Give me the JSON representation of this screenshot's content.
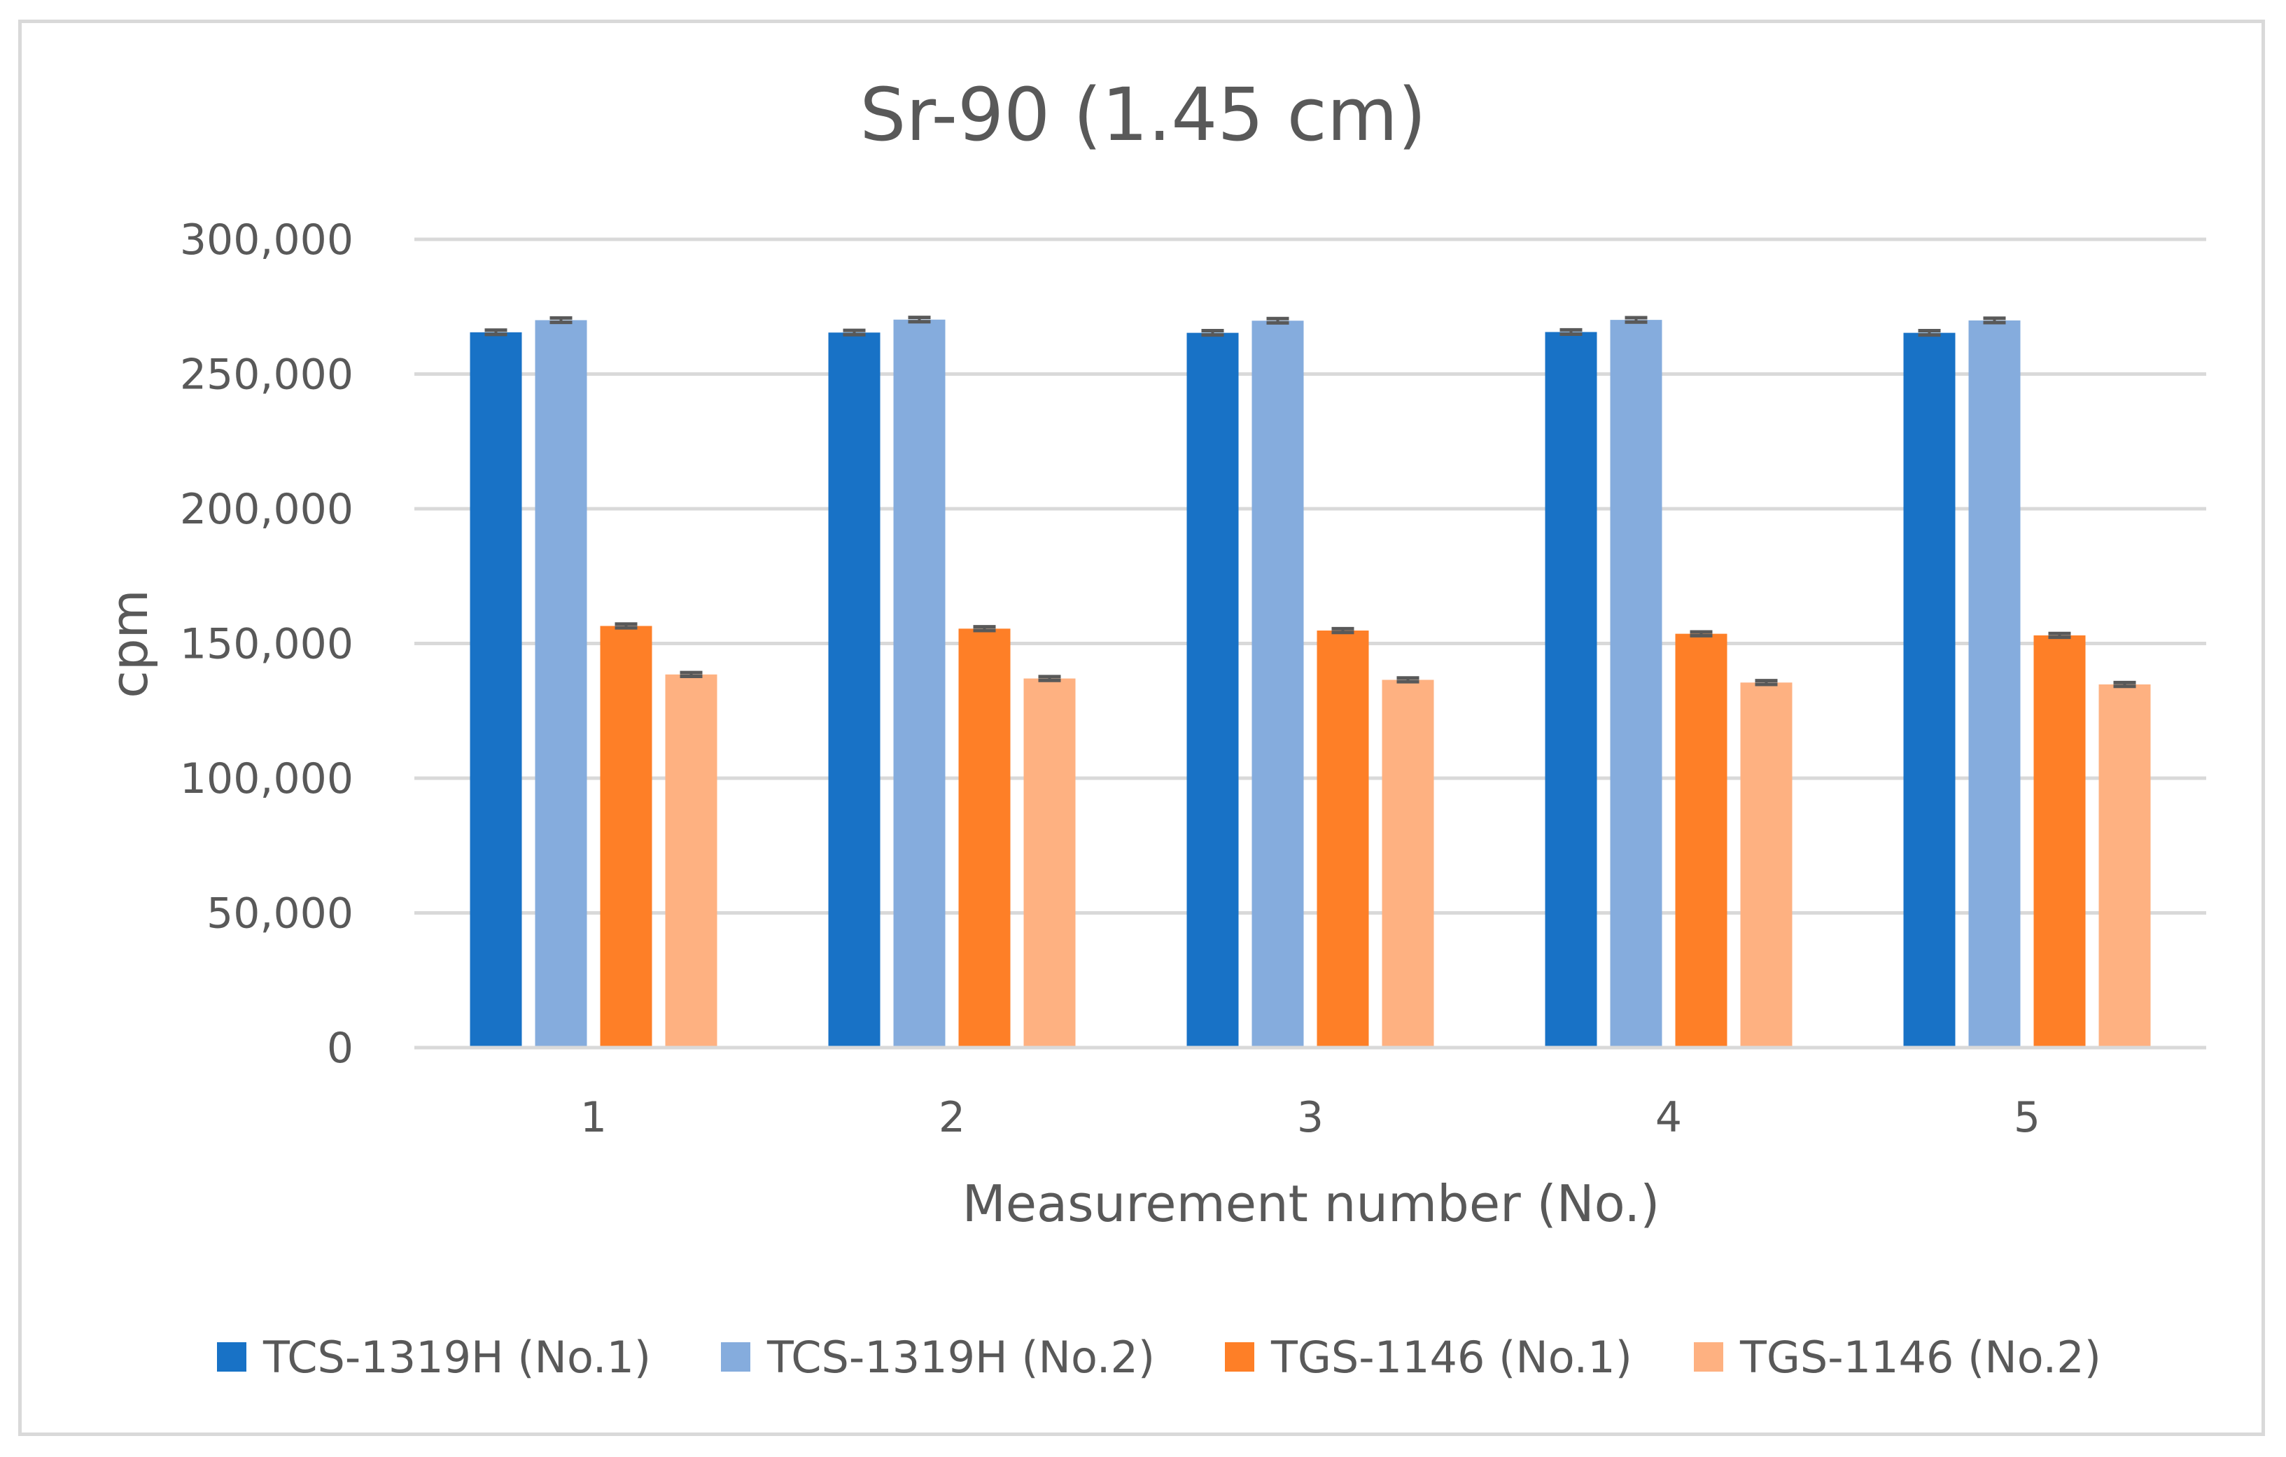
{
  "chart_data": {
    "type": "bar",
    "title": "Sr-90 (1.45 cm)",
    "xlabel": "Measurement number (No.)",
    "ylabel": "cpm",
    "categories": [
      "1",
      "2",
      "3",
      "4",
      "5"
    ],
    "ylim": [
      0,
      300000
    ],
    "yticks": [
      0,
      50000,
      100000,
      150000,
      200000,
      250000,
      300000
    ],
    "ytick_labels": [
      "0",
      "50,000",
      "100,000",
      "150,000",
      "200,000",
      "250,000",
      "300,000"
    ],
    "grid": true,
    "legend_position": "bottom",
    "error_bars": true,
    "series": [
      {
        "name": "TCS-1319H (No.1)",
        "color": "#1872c6",
        "values": [
          265500,
          265400,
          265300,
          265600,
          265300
        ],
        "errors": [
          800,
          800,
          800,
          800,
          800
        ]
      },
      {
        "name": "TCS-1319H (No.2)",
        "color": "#85acdd",
        "values": [
          270000,
          270200,
          269800,
          270100,
          269900
        ],
        "errors": [
          800,
          800,
          800,
          800,
          800
        ]
      },
      {
        "name": "TGS-1146 (No.1)",
        "color": "#fe7f27",
        "values": [
          156500,
          155500,
          154800,
          153600,
          153000
        ],
        "errors": [
          700,
          700,
          700,
          700,
          700
        ]
      },
      {
        "name": "TGS-1146 (No.2)",
        "color": "#feb181",
        "values": [
          138500,
          137000,
          136500,
          135500,
          134800
        ],
        "errors": [
          700,
          700,
          700,
          700,
          700
        ]
      }
    ]
  }
}
